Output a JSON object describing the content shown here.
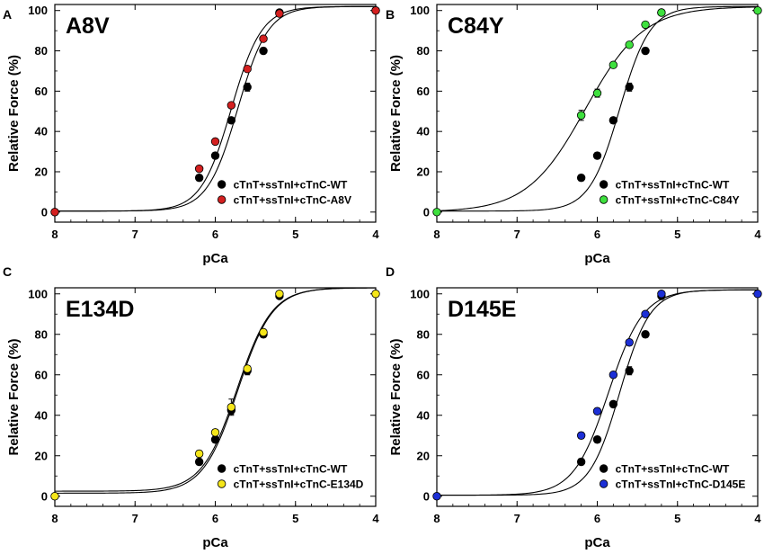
{
  "chart_data": [
    {
      "type": "scatter",
      "panel": "A",
      "title": "A8V",
      "xlabel": "pCa",
      "ylabel": "Relative Force (%)",
      "xlim": [
        8,
        4
      ],
      "ylim": [
        -5,
        103
      ],
      "xticks": [
        8,
        7,
        6,
        5,
        4
      ],
      "yticks": [
        0,
        20,
        40,
        60,
        80,
        100
      ],
      "legend_position": "bottom-right",
      "series": [
        {
          "name": "cTnT+ssTnI+cTnC-WT",
          "color": "#000000",
          "x": [
            8,
            6.2,
            6.0,
            5.8,
            5.6,
            5.4,
            5.2,
            4.0
          ],
          "y": [
            0,
            17,
            28,
            45.5,
            62,
            80,
            99,
            100
          ],
          "err": [
            0,
            1.5,
            1.5,
            1.5,
            2,
            1.5,
            1,
            0
          ],
          "fit": {
            "pCa50": 5.72,
            "nH": 2.3,
            "min": 0.5,
            "max": 102
          }
        },
        {
          "name": "cTnT+ssTnI+cTnC-A8V",
          "color": "#d42020",
          "x": [
            8,
            6.2,
            6.0,
            5.8,
            5.6,
            5.4,
            5.2,
            4.0
          ],
          "y": [
            0,
            21.5,
            35,
            53,
            71,
            86,
            98.5,
            100
          ],
          "err": [
            0,
            1,
            1,
            1,
            1,
            1,
            1,
            0
          ],
          "fit": {
            "pCa50": 5.8,
            "nH": 2.3,
            "min": 0.5,
            "max": 102
          }
        }
      ]
    },
    {
      "type": "scatter",
      "panel": "B",
      "title": "C84Y",
      "xlabel": "pCa",
      "ylabel": "Relative Force (%)",
      "xlim": [
        8,
        4
      ],
      "ylim": [
        -5,
        103
      ],
      "xticks": [
        8,
        7,
        6,
        5,
        4
      ],
      "yticks": [
        0,
        20,
        40,
        60,
        80,
        100
      ],
      "legend_position": "bottom-right",
      "series": [
        {
          "name": "cTnT+ssTnI+cTnC-WT",
          "color": "#000000",
          "x": [
            6.2,
            6.0,
            5.8,
            5.6,
            5.4,
            5.2
          ],
          "y": [
            17,
            28,
            45.5,
            62,
            80,
            99
          ],
          "err": [
            1.5,
            1.5,
            1.5,
            2,
            1.5,
            1
          ],
          "fit": {
            "pCa50": 5.72,
            "nH": 2.3,
            "min": 0.5,
            "max": 102
          }
        },
        {
          "name": "cTnT+ssTnI+cTnC-C84Y",
          "color": "#3ee03e",
          "x": [
            8,
            6.2,
            6.0,
            5.8,
            5.6,
            5.4,
            5.2,
            4.0
          ],
          "y": [
            0,
            48,
            59,
            73,
            83,
            93,
            99,
            100
          ],
          "err": [
            0,
            2.5,
            2,
            1,
            1,
            1,
            1,
            0
          ],
          "fit": {
            "pCa50": 6.15,
            "nH": 1.2,
            "min": 0,
            "max": 102
          }
        }
      ]
    },
    {
      "type": "scatter",
      "panel": "C",
      "title": "E134D",
      "xlabel": "pCa",
      "ylabel": "Relative Force (%)",
      "xlim": [
        8,
        4
      ],
      "ylim": [
        -5,
        103
      ],
      "xticks": [
        8,
        7,
        6,
        5,
        4
      ],
      "yticks": [
        0,
        20,
        40,
        60,
        80,
        100
      ],
      "legend_position": "bottom-right",
      "series": [
        {
          "name": "cTnT+ssTnI+cTnC-WT",
          "color": "#000000",
          "x": [
            6.2,
            6.0,
            5.8,
            5.6,
            5.4,
            5.2
          ],
          "y": [
            17,
            28,
            42.5,
            62,
            80,
            99
          ],
          "err": [
            1.5,
            1.5,
            2,
            2,
            1.5,
            1
          ],
          "fit": {
            "pCa50": 5.72,
            "nH": 2.0,
            "min": 1.5,
            "max": 103
          }
        },
        {
          "name": "cTnT+ssTnI+cTnC-E134D",
          "color": "#f5e61a",
          "x": [
            8,
            6.2,
            6.0,
            5.8,
            5.6,
            5.4,
            5.2,
            4.0
          ],
          "y": [
            0,
            21,
            31.5,
            44,
            63,
            81,
            100,
            100
          ],
          "err": [
            0,
            1.5,
            1.5,
            4,
            1.5,
            1.5,
            1,
            0
          ],
          "fit": {
            "pCa50": 5.73,
            "nH": 2.0,
            "min": 2.5,
            "max": 103
          }
        }
      ]
    },
    {
      "type": "scatter",
      "panel": "D",
      "title": "D145E",
      "xlabel": "pCa",
      "ylabel": "Relative Force (%)",
      "xlim": [
        8,
        4
      ],
      "ylim": [
        -5,
        103
      ],
      "xticks": [
        8,
        7,
        6,
        5,
        4
      ],
      "yticks": [
        0,
        20,
        40,
        60,
        80,
        100
      ],
      "legend_position": "bottom-right",
      "series": [
        {
          "name": "cTnT+ssTnI+cTnC-WT",
          "color": "#000000",
          "x": [
            6.2,
            6.0,
            5.8,
            5.6,
            5.4,
            5.2
          ],
          "y": [
            17,
            28,
            45.5,
            62,
            80,
            99
          ],
          "err": [
            1.5,
            1.5,
            1.5,
            2,
            1.5,
            1
          ],
          "fit": {
            "pCa50": 5.72,
            "nH": 2.3,
            "min": 0.5,
            "max": 102
          }
        },
        {
          "name": "cTnT+ssTnI+cTnC-D145E",
          "color": "#1c2fd6",
          "x": [
            8,
            6.2,
            6.0,
            5.8,
            5.6,
            5.4,
            5.2,
            4.0
          ],
          "y": [
            0,
            30,
            42,
            60,
            76,
            90,
            100,
            100
          ],
          "err": [
            0,
            1.5,
            1.5,
            1,
            1,
            1,
            1,
            0
          ],
          "fit": {
            "pCa50": 5.86,
            "nH": 2.0,
            "min": 0.5,
            "max": 102
          }
        }
      ]
    }
  ]
}
